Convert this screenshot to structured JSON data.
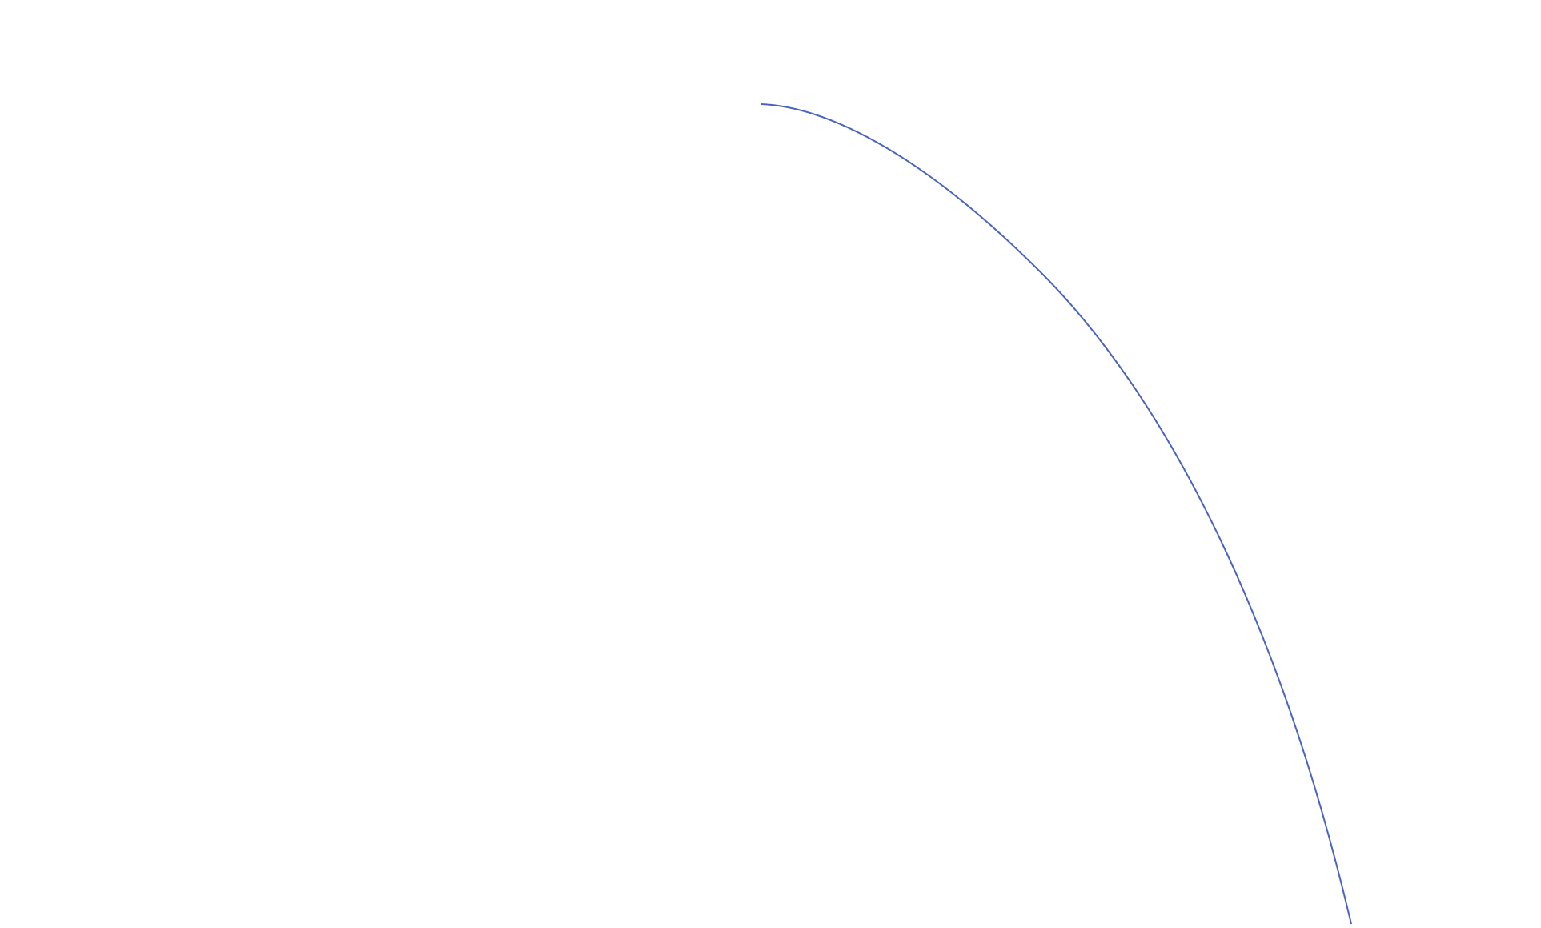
{
  "curve": {
    "stroke_color": "#4a63c0"
  }
}
